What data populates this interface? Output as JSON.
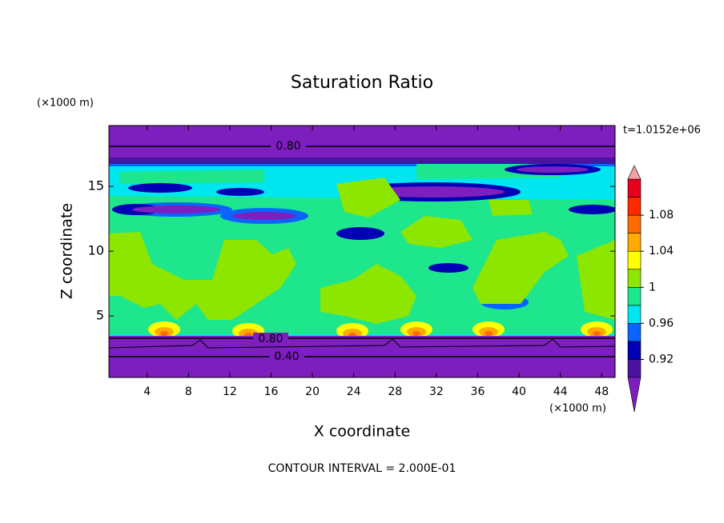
{
  "chart_data": {
    "type": "contour",
    "title": "Saturation Ratio",
    "x_label": "X coordinate",
    "y_label": "Z coordinate",
    "x_unit": "(×1000 m)",
    "y_unit": "(×1000 m)",
    "xlim": [
      0.3,
      49.3
    ],
    "xticks": [
      4,
      8,
      12,
      16,
      20,
      24,
      28,
      32,
      36,
      40,
      44,
      48
    ],
    "ylim": [
      0.25,
      19.7
    ],
    "yticks": [
      5,
      10,
      15
    ],
    "levels": [
      0.9,
      0.92,
      0.94,
      0.96,
      0.98,
      1,
      1.02,
      1.04,
      1.06,
      1.08,
      1.1,
      1.12
    ],
    "colors": [
      "#7d1ebe",
      "#4b14a0",
      "#0000b4",
      "#0a64ff",
      "#00e6f0",
      "#1ee68c",
      "#8ce600",
      "#ffff00",
      "#ffaa00",
      "#ff6a00",
      "#ff2a00",
      "#e6001e",
      "#f0a0a0"
    ],
    "colorbar_ticks": [
      0.92,
      0.96,
      1,
      1.04,
      1.08
    ],
    "contour_labels": [
      "0.80",
      "0.80",
      "0.40"
    ],
    "time_label": "t=1.0152e+06",
    "footnote": "CONTOUR INTERVAL = 2.000E-01"
  }
}
